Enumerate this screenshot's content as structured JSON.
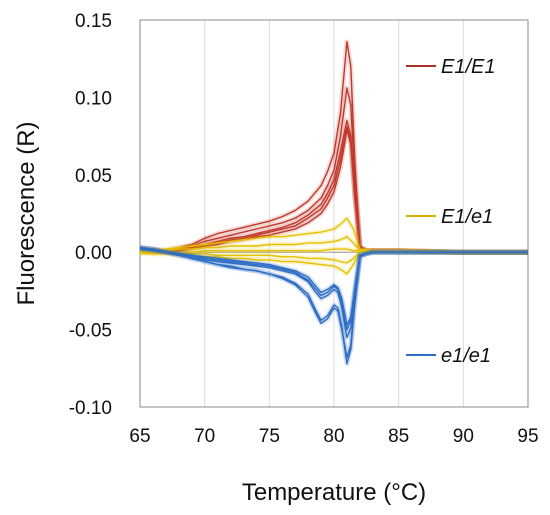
{
  "chart_data": {
    "type": "line",
    "title": "",
    "xlabel": "Temperature (°C)",
    "ylabel": "Fluorescence (R)",
    "xlim": [
      65,
      95
    ],
    "ylim": [
      -0.1,
      0.15
    ],
    "x_ticks": [
      65,
      70,
      75,
      80,
      85,
      90,
      95
    ],
    "x_tick_labels": [
      "65",
      "70",
      "75",
      "80",
      "85",
      "90",
      "95"
    ],
    "y_ticks": [
      -0.1,
      -0.05,
      0.0,
      0.05,
      0.1,
      0.15
    ],
    "y_tick_labels": [
      "-0.10",
      "-0.05",
      "0.00",
      "0.05",
      "0.10",
      "0.15"
    ],
    "grid": {
      "vertical": true,
      "horizontal": false
    },
    "legend_position": "right",
    "series": [
      {
        "name": "E1/E1",
        "color": "#C0392B",
        "legend_color": "#A93226",
        "curves": [
          {
            "x": [
              65,
              66,
              67,
              68,
              69,
              70,
              71,
              72,
              73,
              74,
              75,
              76,
              77,
              78,
              79,
              79.5,
              80,
              80.5,
              81,
              81.3,
              81.6,
              82,
              82.5,
              83,
              84,
              85,
              90,
              95
            ],
            "y": [
              0.003,
              0.002,
              0.001,
              0.003,
              0.005,
              0.009,
              0.012,
              0.014,
              0.016,
              0.018,
              0.02,
              0.023,
              0.027,
              0.033,
              0.043,
              0.052,
              0.064,
              0.09,
              0.136,
              0.12,
              0.06,
              0.004,
              0.001,
              0.001,
              0.001,
              0.001,
              0.0,
              0.0
            ]
          },
          {
            "x": [
              65,
              66,
              67,
              68,
              69,
              70,
              71,
              72,
              73,
              74,
              75,
              76,
              77,
              78,
              79,
              79.5,
              80,
              80.5,
              81,
              81.3,
              81.6,
              82,
              82.5,
              83,
              84,
              85,
              90,
              95
            ],
            "y": [
              0.002,
              0.001,
              0.0,
              0.002,
              0.004,
              0.007,
              0.009,
              0.011,
              0.013,
              0.015,
              0.017,
              0.019,
              0.022,
              0.027,
              0.035,
              0.043,
              0.053,
              0.075,
              0.106,
              0.095,
              0.05,
              0.003,
              0.001,
              0.001,
              0.001,
              0.001,
              0.0,
              0.0
            ]
          },
          {
            "x": [
              65,
              66,
              67,
              68,
              69,
              70,
              71,
              72,
              73,
              74,
              75,
              76,
              77,
              78,
              79,
              79.5,
              80,
              80.5,
              81,
              81.3,
              81.6,
              82,
              82.5,
              83,
              84,
              85,
              90,
              95
            ],
            "y": [
              0.002,
              0.001,
              0.0,
              0.001,
              0.003,
              0.005,
              0.007,
              0.009,
              0.01,
              0.012,
              0.014,
              0.016,
              0.019,
              0.024,
              0.031,
              0.038,
              0.047,
              0.065,
              0.085,
              0.075,
              0.04,
              0.003,
              0.001,
              0.001,
              0.001,
              0.001,
              0.0,
              0.0
            ]
          },
          {
            "x": [
              65,
              66,
              67,
              68,
              69,
              70,
              71,
              72,
              73,
              74,
              75,
              76,
              77,
              78,
              79,
              79.5,
              80,
              80.5,
              81,
              81.3,
              81.6,
              82,
              82.5,
              83,
              84,
              85,
              90,
              95
            ],
            "y": [
              0.002,
              0.001,
              0.0,
              0.001,
              0.003,
              0.004,
              0.006,
              0.008,
              0.009,
              0.011,
              0.013,
              0.015,
              0.017,
              0.022,
              0.028,
              0.035,
              0.043,
              0.06,
              0.081,
              0.072,
              0.038,
              0.003,
              0.001,
              0.001,
              0.001,
              0.001,
              0.0,
              0.0
            ]
          },
          {
            "x": [
              65,
              66,
              67,
              68,
              69,
              70,
              71,
              72,
              73,
              74,
              75,
              76,
              77,
              78,
              79,
              79.5,
              80,
              80.5,
              81,
              81.3,
              81.6,
              82,
              82.5,
              83,
              84,
              85,
              90,
              95
            ],
            "y": [
              0.002,
              0.001,
              0.0,
              0.001,
              0.002,
              0.004,
              0.005,
              0.007,
              0.008,
              0.01,
              0.011,
              0.013,
              0.015,
              0.019,
              0.025,
              0.031,
              0.039,
              0.055,
              0.079,
              0.07,
              0.036,
              0.003,
              0.001,
              0.001,
              0.001,
              0.001,
              0.0,
              0.0
            ]
          }
        ]
      },
      {
        "name": "E1/e1",
        "color": "#E5C100",
        "legend_color": "#D4B000",
        "curves": [
          {
            "x": [
              65,
              66,
              67,
              68,
              69,
              70,
              71,
              72,
              73,
              74,
              75,
              76,
              77,
              78,
              79,
              80,
              80.5,
              81,
              81.5,
              82,
              83,
              85,
              90,
              95
            ],
            "y": [
              0.001,
              0.001,
              0.002,
              0.003,
              0.004,
              0.005,
              0.006,
              0.007,
              0.008,
              0.009,
              0.01,
              0.01,
              0.011,
              0.012,
              0.013,
              0.015,
              0.018,
              0.022,
              0.015,
              0.002,
              0.001,
              0.001,
              0.0,
              0.0
            ]
          },
          {
            "x": [
              65,
              66,
              67,
              68,
              69,
              70,
              71,
              72,
              73,
              74,
              75,
              76,
              77,
              78,
              79,
              80,
              80.5,
              81,
              81.5,
              82,
              83,
              85,
              90,
              95
            ],
            "y": [
              0.001,
              0.001,
              0.001,
              0.002,
              0.002,
              0.003,
              0.003,
              0.004,
              0.004,
              0.004,
              0.005,
              0.005,
              0.005,
              0.006,
              0.006,
              0.007,
              0.008,
              0.01,
              0.006,
              0.001,
              0.001,
              0.001,
              0.0,
              0.0
            ]
          },
          {
            "x": [
              65,
              66,
              67,
              68,
              69,
              70,
              71,
              72,
              73,
              74,
              75,
              76,
              77,
              78,
              79,
              80,
              80.5,
              81,
              81.5,
              82,
              83,
              85,
              90,
              95
            ],
            "y": [
              0.001,
              0.0,
              0.0,
              0.0,
              0.0,
              0.001,
              0.001,
              0.001,
              0.001,
              0.001,
              0.001,
              0.001,
              0.001,
              0.001,
              0.001,
              0.002,
              0.002,
              0.002,
              0.001,
              0.001,
              0.001,
              0.001,
              0.0,
              0.0
            ]
          },
          {
            "x": [
              65,
              66,
              67,
              68,
              69,
              70,
              71,
              72,
              73,
              74,
              75,
              76,
              77,
              78,
              79,
              80,
              80.5,
              81,
              81.5,
              82,
              83,
              85,
              90,
              95
            ],
            "y": [
              0.0,
              -0.001,
              -0.001,
              -0.001,
              -0.001,
              -0.001,
              -0.002,
              -0.002,
              -0.002,
              -0.002,
              -0.002,
              -0.003,
              -0.003,
              -0.004,
              -0.004,
              -0.005,
              -0.006,
              -0.007,
              -0.004,
              0.0,
              0.0,
              0.0,
              0.0,
              0.0
            ]
          },
          {
            "x": [
              65,
              66,
              67,
              68,
              69,
              70,
              71,
              72,
              73,
              74,
              75,
              76,
              77,
              78,
              79,
              80,
              80.5,
              81,
              81.5,
              82,
              83,
              85,
              90,
              95
            ],
            "y": [
              -0.001,
              -0.001,
              -0.001,
              -0.002,
              -0.002,
              -0.003,
              -0.003,
              -0.004,
              -0.004,
              -0.005,
              -0.005,
              -0.006,
              -0.006,
              -0.007,
              -0.008,
              -0.009,
              -0.011,
              -0.014,
              -0.008,
              0.0,
              0.0,
              0.0,
              0.0,
              0.0
            ]
          }
        ]
      },
      {
        "name": "e1/e1",
        "color": "#2E6DC4",
        "legend_color": "#2E6DC4",
        "curves": [
          {
            "x": [
              65,
              66,
              67,
              68,
              69,
              70,
              71,
              72,
              73,
              74,
              75,
              76,
              77,
              78,
              78.5,
              79,
              79.5,
              80,
              80.3,
              80.6,
              81,
              81.3,
              81.6,
              82,
              82.5,
              83,
              85,
              90,
              95
            ],
            "y": [
              0.003,
              0.002,
              0.0,
              -0.002,
              -0.004,
              -0.006,
              -0.008,
              -0.01,
              -0.011,
              -0.012,
              -0.014,
              -0.017,
              -0.021,
              -0.029,
              -0.038,
              -0.046,
              -0.043,
              -0.036,
              -0.038,
              -0.05,
              -0.068,
              -0.06,
              -0.032,
              -0.003,
              -0.001,
              0.0,
              0.0,
              0.0,
              0.0
            ]
          },
          {
            "x": [
              65,
              66,
              67,
              68,
              69,
              70,
              71,
              72,
              73,
              74,
              75,
              76,
              77,
              78,
              78.5,
              79,
              79.5,
              80,
              80.3,
              80.6,
              81,
              81.3,
              81.6,
              82,
              82.5,
              83,
              85,
              90,
              95
            ],
            "y": [
              0.003,
              0.002,
              0.0,
              -0.002,
              -0.004,
              -0.006,
              -0.008,
              -0.009,
              -0.011,
              -0.012,
              -0.014,
              -0.016,
              -0.02,
              -0.027,
              -0.036,
              -0.044,
              -0.041,
              -0.034,
              -0.036,
              -0.048,
              -0.072,
              -0.063,
              -0.034,
              -0.003,
              -0.001,
              0.0,
              0.0,
              0.0,
              0.0
            ]
          },
          {
            "x": [
              65,
              66,
              67,
              68,
              69,
              70,
              71,
              72,
              73,
              74,
              75,
              76,
              77,
              78,
              78.5,
              79,
              79.5,
              80,
              80.3,
              80.6,
              81,
              81.3,
              81.6,
              82,
              82.5,
              83,
              85,
              90,
              95
            ],
            "y": [
              0.003,
              0.002,
              0.0,
              -0.001,
              -0.003,
              -0.005,
              -0.006,
              -0.007,
              -0.008,
              -0.009,
              -0.01,
              -0.012,
              -0.014,
              -0.019,
              -0.025,
              -0.03,
              -0.028,
              -0.024,
              -0.026,
              -0.036,
              -0.055,
              -0.049,
              -0.028,
              -0.002,
              -0.001,
              0.0,
              0.0,
              0.0,
              0.0
            ]
          },
          {
            "x": [
              65,
              66,
              67,
              68,
              69,
              70,
              71,
              72,
              73,
              74,
              75,
              76,
              77,
              78,
              78.5,
              79,
              79.5,
              80,
              80.3,
              80.6,
              81,
              81.3,
              81.6,
              82,
              82.5,
              83,
              85,
              90,
              95
            ],
            "y": [
              0.002,
              0.001,
              0.0,
              -0.001,
              -0.002,
              -0.004,
              -0.005,
              -0.006,
              -0.007,
              -0.008,
              -0.009,
              -0.011,
              -0.013,
              -0.018,
              -0.023,
              -0.028,
              -0.026,
              -0.022,
              -0.024,
              -0.032,
              -0.05,
              -0.044,
              -0.025,
              -0.002,
              -0.001,
              0.0,
              0.0,
              0.0,
              0.0
            ]
          },
          {
            "x": [
              65,
              66,
              67,
              68,
              69,
              70,
              71,
              72,
              73,
              74,
              75,
              76,
              77,
              78,
              78.5,
              79,
              79.5,
              80,
              80.3,
              80.6,
              81,
              81.3,
              81.6,
              82,
              82.5,
              83,
              85,
              90,
              95
            ],
            "y": [
              0.002,
              0.001,
              0.0,
              -0.001,
              -0.002,
              -0.003,
              -0.004,
              -0.005,
              -0.006,
              -0.007,
              -0.008,
              -0.01,
              -0.012,
              -0.016,
              -0.021,
              -0.026,
              -0.024,
              -0.021,
              -0.023,
              -0.03,
              -0.047,
              -0.042,
              -0.024,
              -0.002,
              -0.001,
              0.0,
              0.0,
              0.0,
              0.0
            ]
          }
        ]
      }
    ]
  }
}
